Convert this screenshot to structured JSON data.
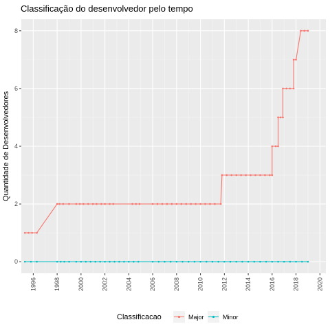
{
  "chart_data": {
    "type": "line",
    "title": "Classificação do desenvolvedor pelo tempo",
    "xlabel": "",
    "ylabel": "Quantidade de Desenvolvedores",
    "xlim": [
      1995.0,
      2020.5
    ],
    "ylim": [
      -0.4,
      8.4
    ],
    "x_ticks": [
      1996,
      1998,
      2000,
      2002,
      2004,
      2006,
      2008,
      2010,
      2012,
      2014,
      2016,
      2018,
      2020
    ],
    "y_ticks": [
      0,
      2,
      4,
      6,
      8
    ],
    "grid": true,
    "legend": {
      "title": "Classificacao",
      "position": "bottom"
    },
    "series": [
      {
        "name": "Major",
        "color": "#F8766D",
        "points": [
          [
            1995.3,
            1
          ],
          [
            1995.6,
            1
          ],
          [
            1995.9,
            1
          ],
          [
            1996.3,
            1
          ],
          [
            1998.0,
            2
          ],
          [
            1998.2,
            2
          ],
          [
            1998.5,
            2
          ],
          [
            1999.0,
            2
          ],
          [
            1999.6,
            2
          ],
          [
            1999.9,
            2
          ],
          [
            2000.2,
            2
          ],
          [
            2000.6,
            2
          ],
          [
            2001.0,
            2
          ],
          [
            2001.3,
            2
          ],
          [
            2001.7,
            2
          ],
          [
            2002.0,
            2
          ],
          [
            2002.4,
            2
          ],
          [
            2002.7,
            2
          ],
          [
            2004.3,
            2
          ],
          [
            2004.6,
            2
          ],
          [
            2004.9,
            2
          ],
          [
            2006.0,
            2
          ],
          [
            2006.4,
            2
          ],
          [
            2006.8,
            2
          ],
          [
            2007.2,
            2
          ],
          [
            2007.6,
            2
          ],
          [
            2008.0,
            2
          ],
          [
            2008.4,
            2
          ],
          [
            2008.8,
            2
          ],
          [
            2009.2,
            2
          ],
          [
            2009.6,
            2
          ],
          [
            2010.0,
            2
          ],
          [
            2010.4,
            2
          ],
          [
            2010.8,
            2
          ],
          [
            2011.2,
            2
          ],
          [
            2011.7,
            2
          ],
          [
            2011.8,
            3
          ],
          [
            2012.2,
            3
          ],
          [
            2012.6,
            3
          ],
          [
            2013.0,
            3
          ],
          [
            2013.4,
            3
          ],
          [
            2013.8,
            3
          ],
          [
            2014.2,
            3
          ],
          [
            2014.6,
            3
          ],
          [
            2015.0,
            3
          ],
          [
            2015.4,
            3
          ],
          [
            2015.8,
            3
          ],
          [
            2016.0,
            3
          ],
          [
            2016.0,
            4
          ],
          [
            2016.3,
            4
          ],
          [
            2016.5,
            4
          ],
          [
            2016.5,
            5
          ],
          [
            2016.7,
            5
          ],
          [
            2016.9,
            5
          ],
          [
            2016.9,
            6
          ],
          [
            2017.2,
            6
          ],
          [
            2017.5,
            6
          ],
          [
            2017.8,
            6
          ],
          [
            2017.8,
            7
          ],
          [
            2018.0,
            7
          ],
          [
            2018.4,
            8
          ],
          [
            2018.7,
            8
          ],
          [
            2019.0,
            8
          ]
        ]
      },
      {
        "name": "Minor",
        "color": "#00BFC4",
        "points": [
          [
            1995.3,
            0
          ],
          [
            1995.8,
            0
          ],
          [
            1996.3,
            0
          ],
          [
            1998.0,
            0
          ],
          [
            1998.3,
            0
          ],
          [
            1998.6,
            0
          ],
          [
            1999.0,
            0
          ],
          [
            1999.6,
            0
          ],
          [
            2000.0,
            0
          ],
          [
            2000.4,
            0
          ],
          [
            2000.8,
            0
          ],
          [
            2001.2,
            0
          ],
          [
            2001.6,
            0
          ],
          [
            2002.0,
            0
          ],
          [
            2002.4,
            0
          ],
          [
            2002.8,
            0
          ],
          [
            2003.2,
            0
          ],
          [
            2003.6,
            0
          ],
          [
            2004.0,
            0
          ],
          [
            2004.4,
            0
          ],
          [
            2004.8,
            0
          ],
          [
            2006.0,
            0
          ],
          [
            2006.5,
            0
          ],
          [
            2007.0,
            0
          ],
          [
            2007.5,
            0
          ],
          [
            2008.0,
            0
          ],
          [
            2008.5,
            0
          ],
          [
            2009.0,
            0
          ],
          [
            2009.5,
            0
          ],
          [
            2010.0,
            0
          ],
          [
            2010.5,
            0
          ],
          [
            2011.0,
            0
          ],
          [
            2011.5,
            0
          ],
          [
            2012.0,
            0
          ],
          [
            2012.5,
            0
          ],
          [
            2013.0,
            0
          ],
          [
            2013.5,
            0
          ],
          [
            2014.0,
            0
          ],
          [
            2014.5,
            0
          ],
          [
            2015.0,
            0
          ],
          [
            2015.5,
            0
          ],
          [
            2016.0,
            0
          ],
          [
            2016.5,
            0
          ],
          [
            2017.0,
            0
          ],
          [
            2017.5,
            0
          ],
          [
            2018.0,
            0
          ],
          [
            2018.5,
            0
          ],
          [
            2019.0,
            0
          ]
        ]
      }
    ]
  }
}
